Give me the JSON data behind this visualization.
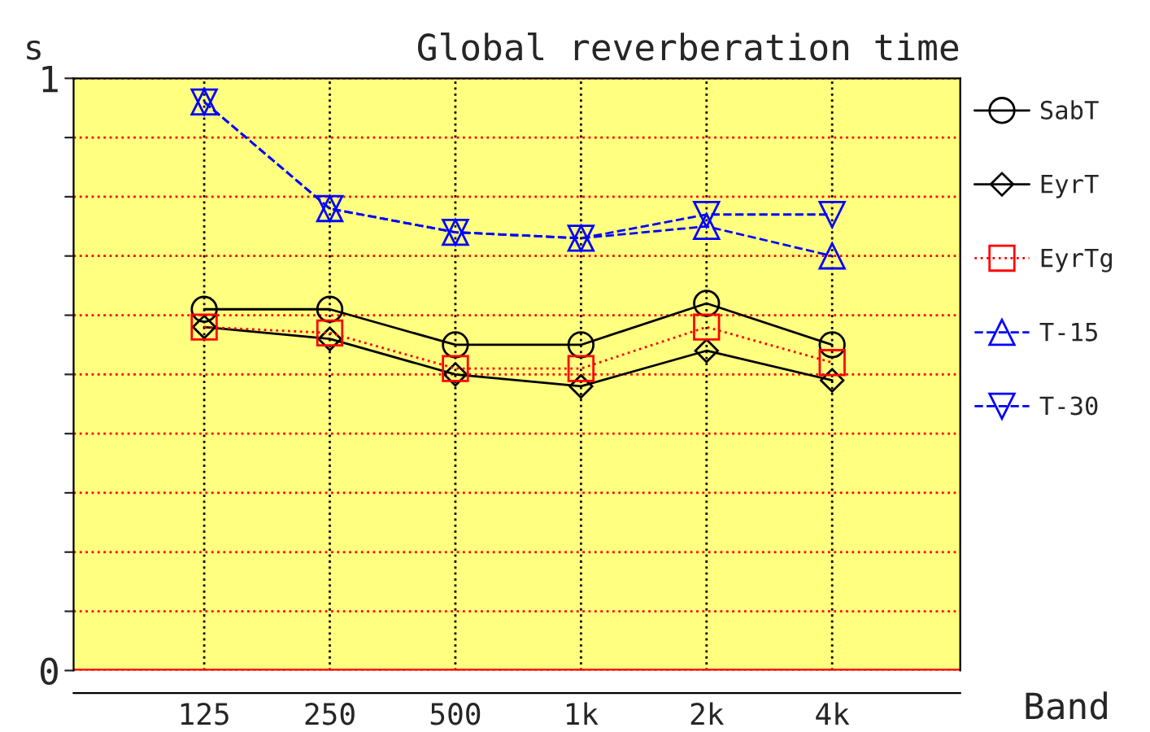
{
  "chart_data": {
    "type": "line",
    "title": "Global reverberation time",
    "xlabel": "Band",
    "ylabel": "s",
    "categories": [
      "125",
      "250",
      "500",
      "1k",
      "2k",
      "4k"
    ],
    "series": [
      {
        "name": "SabT",
        "color": "#000000",
        "marker": "circle",
        "line_style": "solid",
        "values": [
          0.61,
          0.61,
          0.55,
          0.55,
          0.62,
          0.55
        ]
      },
      {
        "name": "EyrT",
        "color": "#000000",
        "marker": "diamond",
        "line_style": "solid",
        "values": [
          0.58,
          0.56,
          0.5,
          0.48,
          0.54,
          0.49
        ]
      },
      {
        "name": "EyrTg",
        "color": "#ff0000",
        "marker": "square",
        "line_style": "dotted",
        "values": [
          0.58,
          0.57,
          0.51,
          0.51,
          0.58,
          0.52
        ]
      },
      {
        "name": "T-15",
        "color": "#0000ff",
        "marker": "triangle",
        "line_style": "dashed",
        "values": [
          0.96,
          0.78,
          0.74,
          0.73,
          0.75,
          0.7
        ]
      },
      {
        "name": "T-30",
        "color": "#0000ff",
        "marker": "triangle_down",
        "line_style": "dashed",
        "values": [
          0.96,
          0.78,
          0.74,
          0.73,
          0.77,
          0.77
        ]
      }
    ],
    "ylim": [
      0,
      1
    ],
    "yticks": [
      0,
      {
        "value": 0.1,
        "label": null
      },
      {
        "value": 0.2,
        "label": null
      },
      {
        "value": 0.3,
        "label": null
      },
      {
        "value": 0.4,
        "label": null
      },
      {
        "value": 0.5,
        "label": null
      },
      {
        "value": 0.6,
        "label": null
      },
      {
        "value": 0.7,
        "label": null
      },
      {
        "value": 0.8,
        "label": null
      },
      {
        "value": 0.9,
        "label": null
      },
      1
    ],
    "grid": true,
    "legend": "right"
  }
}
